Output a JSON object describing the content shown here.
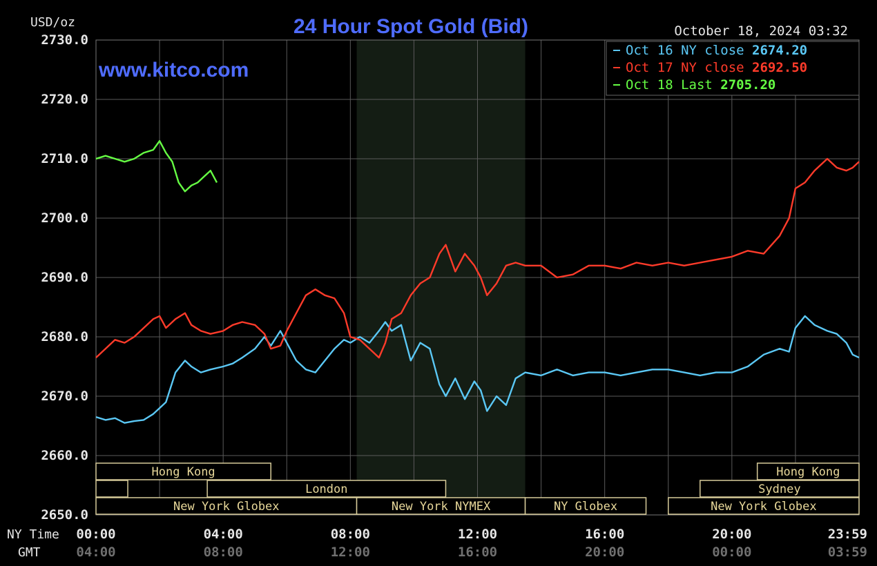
{
  "chart_data": {
    "type": "line",
    "title": "24 Hour Spot Gold (Bid)",
    "watermark": "www.kitco.com",
    "timestamp": "October 18, 2024 03:32",
    "ylabel": "USD/oz",
    "ylim": [
      2650,
      2730
    ],
    "y_ticks": [
      "2730.0",
      "2720.0",
      "2710.0",
      "2700.0",
      "2690.0",
      "2680.0",
      "2670.0",
      "2660.0",
      "2650.0"
    ],
    "x_row1_label": "NY Time",
    "x_row2_label": "GMT",
    "x_ticks_ny": [
      "00:00",
      "04:00",
      "08:00",
      "12:00",
      "16:00",
      "20:00",
      "23:59"
    ],
    "x_ticks_gmt": [
      "04:00",
      "08:00",
      "12:00",
      "16:00",
      "20:00",
      "00:00",
      "03:59"
    ],
    "x_tick_hours": [
      0,
      4,
      8,
      12,
      16,
      20,
      23.98
    ],
    "xlim_hours": [
      0,
      24
    ],
    "grid": true,
    "legend_position": "top-right",
    "legend": [
      {
        "label": "Oct 16 NY close",
        "value": "2674.20",
        "color": "#5bc8f5"
      },
      {
        "label": "Oct 17 NY close",
        "value": "2692.50",
        "color": "#ff3b2a"
      },
      {
        "label": "Oct 18 Last",
        "value": "2705.20",
        "color": "#66ff44"
      }
    ],
    "highlight_region_hours": [
      8.2,
      13.5
    ],
    "sessions": [
      {
        "label": "Hong Kong",
        "row": 1,
        "start": 0,
        "end": 5.5
      },
      {
        "label": "",
        "row": 2,
        "start": 0,
        "end": 1
      },
      {
        "label": "London",
        "row": 2,
        "start": 3.5,
        "end": 11
      },
      {
        "label": "New York Globex",
        "row": 3,
        "start": 0,
        "end": 8.2
      },
      {
        "label": "New York NYMEX",
        "row": 3,
        "start": 8.2,
        "end": 13.5
      },
      {
        "label": "NY Globex",
        "row": 3,
        "start": 13.5,
        "end": 17.3
      },
      {
        "label": "Hong Kong",
        "row": 1,
        "start": 20.8,
        "end": 24
      },
      {
        "label": "Sydney",
        "row": 2,
        "start": 19,
        "end": 24
      },
      {
        "label": "New York Globex",
        "row": 3,
        "start": 18,
        "end": 24
      }
    ],
    "series": [
      {
        "name": "Oct 16",
        "color": "#5bc8f5",
        "x": [
          0,
          0.3,
          0.6,
          0.9,
          1.2,
          1.5,
          1.8,
          2.0,
          2.2,
          2.5,
          2.8,
          3.0,
          3.3,
          3.6,
          4.0,
          4.3,
          4.6,
          5.0,
          5.3,
          5.5,
          5.8,
          6.0,
          6.3,
          6.6,
          6.9,
          7.2,
          7.5,
          7.8,
          8.0,
          8.3,
          8.6,
          8.9,
          9.1,
          9.3,
          9.6,
          9.9,
          10.2,
          10.5,
          10.8,
          11.0,
          11.3,
          11.6,
          11.9,
          12.1,
          12.3,
          12.6,
          12.9,
          13.2,
          13.5,
          14.0,
          14.5,
          15.0,
          15.5,
          16.0,
          16.5,
          17.0,
          17.5,
          18.0,
          18.5,
          19.0,
          19.5,
          20.0,
          20.5,
          21.0,
          21.5,
          21.8,
          22.0,
          22.3,
          22.6,
          23.0,
          23.3,
          23.6,
          23.8,
          24.0
        ],
        "y": [
          2666.5,
          2666.0,
          2666.3,
          2665.5,
          2665.8,
          2666.0,
          2667.0,
          2668.0,
          2669.0,
          2674.0,
          2676.0,
          2675.0,
          2674.0,
          2674.5,
          2675.0,
          2675.5,
          2676.5,
          2678.0,
          2680.0,
          2678.5,
          2681.0,
          2679.0,
          2676.0,
          2674.5,
          2674.0,
          2676.0,
          2678.0,
          2679.5,
          2679.0,
          2680.0,
          2679.0,
          2681.0,
          2682.5,
          2681.0,
          2682.0,
          2676.0,
          2679.0,
          2678.0,
          2672.0,
          2670.0,
          2673.0,
          2669.5,
          2672.5,
          2671.0,
          2667.5,
          2670.0,
          2668.5,
          2673.0,
          2674.0,
          2673.5,
          2674.5,
          2673.5,
          2674.0,
          2674.0,
          2673.5,
          2674.0,
          2674.5,
          2674.5,
          2674.0,
          2673.5,
          2674.0,
          2674.0,
          2675.0,
          2677.0,
          2678.0,
          2677.5,
          2681.5,
          2683.5,
          2682.0,
          2681.0,
          2680.5,
          2679.0,
          2677.0,
          2676.5
        ]
      },
      {
        "name": "Oct 17",
        "color": "#ff3b2a",
        "x": [
          0,
          0.3,
          0.6,
          0.9,
          1.2,
          1.5,
          1.8,
          2.0,
          2.2,
          2.5,
          2.8,
          3.0,
          3.3,
          3.6,
          4.0,
          4.3,
          4.6,
          5.0,
          5.3,
          5.5,
          5.8,
          6.0,
          6.3,
          6.6,
          6.9,
          7.2,
          7.5,
          7.8,
          8.0,
          8.3,
          8.6,
          8.9,
          9.1,
          9.3,
          9.6,
          9.9,
          10.2,
          10.5,
          10.8,
          11.0,
          11.3,
          11.6,
          11.9,
          12.1,
          12.3,
          12.6,
          12.9,
          13.2,
          13.5,
          14.0,
          14.5,
          15.0,
          15.5,
          16.0,
          16.5,
          17.0,
          17.5,
          18.0,
          18.5,
          19.0,
          19.5,
          20.0,
          20.5,
          21.0,
          21.5,
          21.8,
          22.0,
          22.3,
          22.6,
          23.0,
          23.3,
          23.6,
          23.8,
          24.0
        ],
        "y": [
          2676.5,
          2678.0,
          2679.5,
          2679.0,
          2680.0,
          2681.5,
          2683.0,
          2683.5,
          2681.5,
          2683.0,
          2684.0,
          2682.0,
          2681.0,
          2680.5,
          2681.0,
          2682.0,
          2682.5,
          2682.0,
          2680.5,
          2678.0,
          2678.5,
          2681.0,
          2684.0,
          2687.0,
          2688.0,
          2687.0,
          2686.5,
          2684.0,
          2680.0,
          2679.5,
          2678.0,
          2676.5,
          2679.0,
          2683.0,
          2684.0,
          2687.0,
          2689.0,
          2690.0,
          2694.0,
          2695.5,
          2691.0,
          2694.0,
          2692.0,
          2690.0,
          2687.0,
          2689.0,
          2692.0,
          2692.5,
          2692.0,
          2692.0,
          2690.0,
          2690.5,
          2692.0,
          2692.0,
          2691.5,
          2692.5,
          2692.0,
          2692.5,
          2692.0,
          2692.5,
          2693.0,
          2693.5,
          2694.5,
          2694.0,
          2697.0,
          2700.0,
          2705.0,
          2706.0,
          2708.0,
          2710.0,
          2708.5,
          2708.0,
          2708.5,
          2709.5
        ]
      },
      {
        "name": "Oct 18",
        "color": "#66ff44",
        "x": [
          0,
          0.3,
          0.6,
          0.9,
          1.2,
          1.5,
          1.8,
          2.0,
          2.2,
          2.4,
          2.6,
          2.8,
          3.0,
          3.2,
          3.4,
          3.6,
          3.8
        ],
        "y": [
          2710.0,
          2710.5,
          2710.0,
          2709.5,
          2710.0,
          2711.0,
          2711.5,
          2713.0,
          2711.0,
          2709.5,
          2706.0,
          2704.5,
          2705.5,
          2706.0,
          2707.0,
          2708.0,
          2706.0
        ]
      }
    ]
  }
}
